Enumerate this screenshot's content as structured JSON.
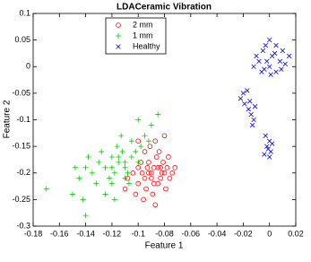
{
  "chart_data": {
    "type": "scatter",
    "title": "LDACeramic Vibration",
    "x_label": "Feature 1",
    "y_label": "Feature 2",
    "xlim": [
      -0.18,
      0.02
    ],
    "xticks": [
      -0.18,
      -0.16,
      -0.14,
      -0.12,
      -0.1,
      -0.08,
      -0.06,
      -0.04,
      -0.02,
      0,
      0.02
    ],
    "ylim": [
      -0.3,
      0.1
    ],
    "yticks": [
      -0.3,
      -0.25,
      -0.2,
      -0.15,
      -0.1,
      -0.05,
      0,
      0.05,
      0.1
    ],
    "series": [
      {
        "name": "2 mm",
        "color": "#ff0000",
        "marker": "o",
        "x": [
          -0.09,
          -0.085,
          -0.095,
          -0.08,
          -0.1,
          -0.088,
          -0.092,
          -0.078,
          -0.083,
          -0.097,
          -0.086,
          -0.094,
          -0.081,
          -0.1,
          -0.076,
          -0.089,
          -0.104,
          -0.084,
          -0.091,
          -0.079,
          -0.096,
          -0.087,
          -0.074,
          -0.102,
          -0.093,
          -0.082,
          -0.09,
          -0.098,
          -0.085,
          -0.077,
          -0.095,
          -0.108,
          -0.087,
          -0.08,
          -0.1,
          -0.072,
          -0.11,
          -0.088,
          -0.092,
          -0.083
        ],
        "values": [
          -0.2,
          -0.19,
          -0.21,
          -0.2,
          -0.19,
          -0.22,
          -0.18,
          -0.19,
          -0.21,
          -0.2,
          -0.17,
          -0.23,
          -0.18,
          -0.22,
          -0.21,
          -0.24,
          -0.2,
          -0.16,
          -0.15,
          -0.23,
          -0.25,
          -0.26,
          -0.2,
          -0.24,
          -0.19,
          -0.2,
          -0.21,
          -0.18,
          -0.22,
          -0.17,
          -0.16,
          -0.21,
          -0.14,
          -0.13,
          -0.14,
          -0.19,
          -0.23,
          -0.19,
          -0.2,
          -0.19
        ]
      },
      {
        "name": "1 mm",
        "color": "#00cc00",
        "marker": "+",
        "x": [
          -0.115,
          -0.12,
          -0.11,
          -0.125,
          -0.105,
          -0.118,
          -0.13,
          -0.112,
          -0.108,
          -0.122,
          -0.1,
          -0.116,
          -0.135,
          -0.128,
          -0.102,
          -0.12,
          -0.11,
          -0.14,
          -0.132,
          -0.098,
          -0.095,
          -0.105,
          -0.09,
          -0.085,
          -0.1,
          -0.092,
          -0.113,
          -0.145,
          -0.15,
          -0.142,
          -0.17,
          -0.14,
          -0.125,
          -0.118,
          -0.107,
          -0.138,
          -0.148,
          -0.12,
          -0.115,
          -0.11
        ],
        "values": [
          -0.18,
          -0.17,
          -0.19,
          -0.19,
          -0.17,
          -0.2,
          -0.18,
          -0.16,
          -0.2,
          -0.21,
          -0.18,
          -0.15,
          -0.2,
          -0.16,
          -0.16,
          -0.22,
          -0.21,
          -0.19,
          -0.22,
          -0.15,
          -0.13,
          -0.14,
          -0.11,
          -0.09,
          -0.1,
          -0.14,
          -0.13,
          -0.21,
          -0.24,
          -0.25,
          -0.23,
          -0.28,
          -0.24,
          -0.25,
          -0.22,
          -0.17,
          -0.19,
          -0.19,
          -0.17,
          -0.18
        ]
      },
      {
        "name": "Healthy",
        "color": "#0000ff",
        "marker": "x",
        "x": [
          0,
          0.005,
          -0.005,
          0.01,
          -0.01,
          0.015,
          0.002,
          -0.008,
          0.008,
          0,
          -0.004,
          0.005,
          -0.012,
          0.012,
          -0.002,
          0.004,
          -0.006,
          0.001,
          0.009,
          -0.003,
          -0.02,
          -0.022,
          -0.017,
          -0.019,
          -0.016,
          -0.014,
          -0.012,
          -0.015,
          -0.011,
          -0.013,
          -0.003,
          0,
          -0.002,
          0.001,
          -0.004,
          0,
          -0.001,
          0.002
        ],
        "values": [
          0.05,
          0.04,
          0.03,
          0.03,
          0.02,
          0.02,
          0.02,
          0.01,
          0.01,
          0,
          -0.005,
          -0.01,
          0,
          0.005,
          0.01,
          0.025,
          -0.01,
          -0.015,
          -0.005,
          0.04,
          -0.05,
          -0.06,
          -0.045,
          -0.07,
          -0.08,
          -0.09,
          -0.1,
          -0.065,
          -0.075,
          -0.11,
          -0.13,
          -0.14,
          -0.15,
          -0.16,
          -0.165,
          -0.17,
          -0.155,
          -0.145
        ]
      }
    ]
  }
}
